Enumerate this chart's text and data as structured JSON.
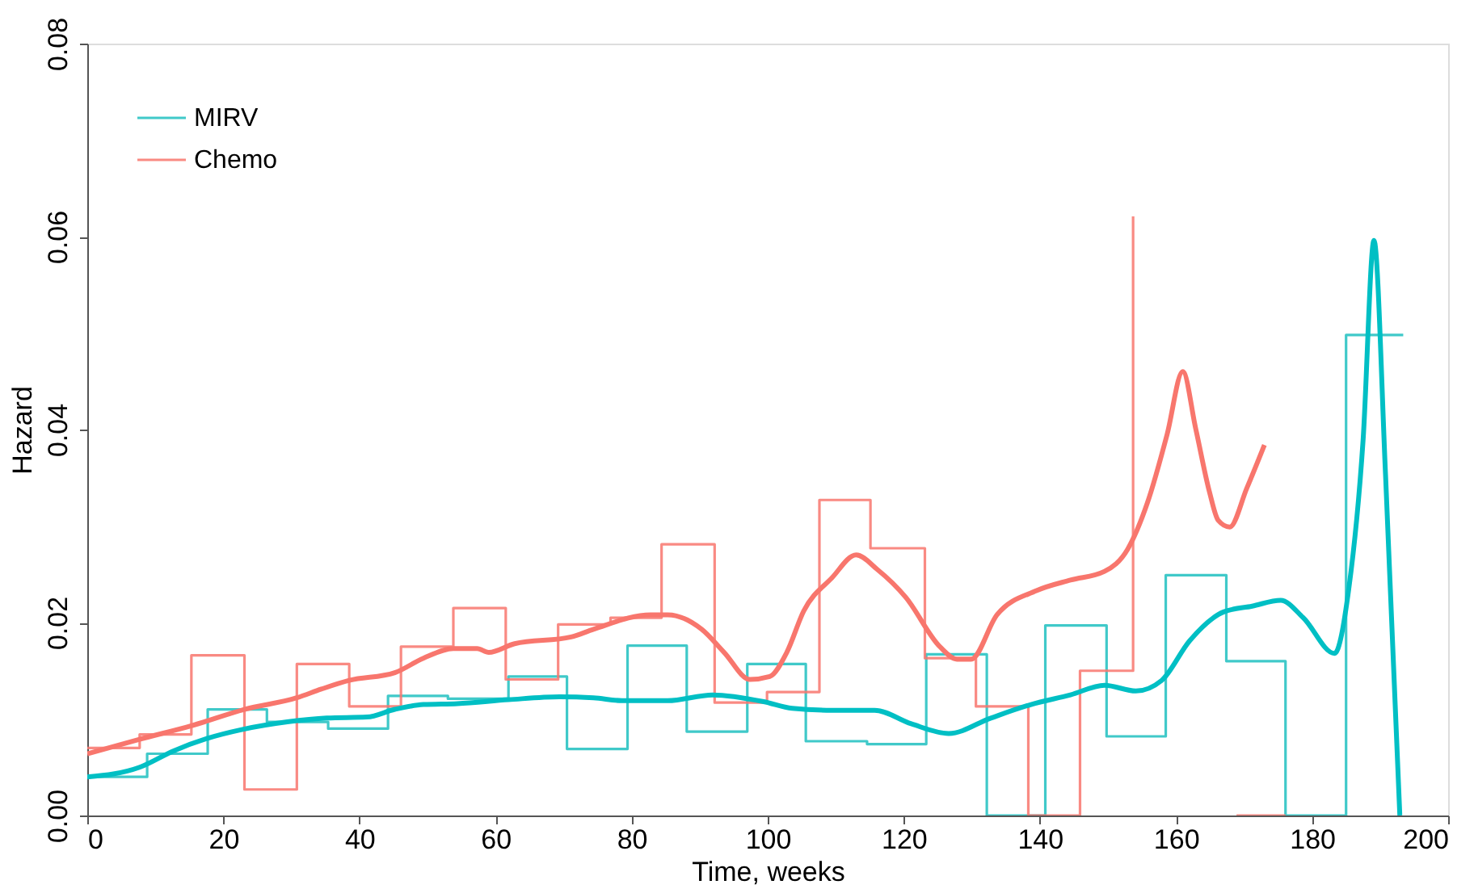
{
  "chart_data": {
    "type": "line",
    "xlabel": "Time, weeks",
    "ylabel": "Hazard",
    "xlim": [
      0,
      200
    ],
    "xticks": [
      0,
      20,
      40,
      60,
      80,
      100,
      120,
      140,
      160,
      180,
      200
    ],
    "ylim": [
      0,
      0.08
    ],
    "yticks": [
      {
        "value": 0,
        "label": "0.00"
      },
      0.02,
      0.04,
      0.06,
      0.08
    ],
    "grid": false,
    "legend": "top left",
    "series": [
      {
        "name": "MIRV",
        "color": "#1fc0c0",
        "type": "step",
        "x": [
          0,
          8.8,
          17.7,
          26.4,
          35.4,
          44.2,
          53.0,
          61.9,
          70.5,
          79.4,
          88.1,
          97.0,
          105.6,
          114.6,
          123.3,
          132.2,
          140.8,
          149.8,
          158.5,
          167.4,
          176.1,
          185.0,
          193.4
        ],
        "values": [
          0.004,
          0.0064,
          0.011,
          0.0097,
          0.009,
          0.0124,
          0.0121,
          0.0144,
          0.0069,
          0.0176,
          0.0087,
          0.0157,
          0.0077,
          0.0074,
          0.0167,
          0,
          0.0197,
          0.0082,
          0.0249,
          0.016,
          0,
          0.0498,
          0.0498
        ]
      },
      {
        "name": "Chemo",
        "color": "#f8766d",
        "type": "step",
        "x": [
          0,
          7.7,
          15.3,
          23.1,
          30.8,
          38.5,
          46.1,
          53.8,
          61.5,
          69.2,
          76.9,
          84.4,
          92.2,
          99.9,
          107.6,
          115.1,
          123.1,
          130.6,
          138.3,
          145.9,
          153.7,
          161.3,
          168.9,
          176.1
        ],
        "values": [
          0.007,
          0.0084,
          0.0166,
          0.0027,
          0.0157,
          0.0113,
          0.0175,
          0.0215,
          0.0141,
          0.0198,
          0.0205,
          0.0281,
          0.0117,
          0.0128,
          0.0327,
          0.0277,
          0.0163,
          0.0113,
          0,
          0.015,
          0.0621,
          null,
          0,
          0
        ]
      },
      {
        "color": "#00bfc4",
        "type": "line",
        "x": [
          0,
          7.7,
          12.7,
          17.7,
          22.7,
          29.4,
          35.2,
          41.1,
          45.2,
          49.4,
          54.4,
          61.9,
          69.4,
          74.4,
          78.6,
          85.3,
          91.9,
          99.4,
          103.6,
          109.4,
          115.7,
          121.1,
          126.6,
          132.8,
          138.7,
          144.5,
          149.5,
          154.1,
          157.9,
          162.0,
          167.0,
          171.2,
          175.4,
          178.7,
          183.3,
          185.4,
          187.5,
          189.1,
          190.8,
          192.9
        ],
        "values": [
          0.004,
          0.005,
          0.0067,
          0.008,
          0.0089,
          0.0097,
          0.0101,
          0.0102,
          0.011,
          0.0115,
          0.0116,
          0.012,
          0.0123,
          0.0122,
          0.0119,
          0.0119,
          0.0125,
          0.0118,
          0.0111,
          0.0109,
          0.0109,
          0.0095,
          0.0085,
          0.0101,
          0.0115,
          0.0125,
          0.0135,
          0.0129,
          0.014,
          0.0181,
          0.0211,
          0.0217,
          0.0223,
          0.0205,
          0.0168,
          0.0235,
          0.0389,
          0.0596,
          0.0353,
          0
        ]
      },
      {
        "color": "#f8766d",
        "type": "line",
        "x": [
          0,
          7.7,
          15.3,
          23.1,
          30.8,
          34.4,
          38.5,
          45.2,
          49.4,
          53.8,
          57.3,
          59.0,
          62.8,
          71.1,
          74.4,
          82.8,
          85.3,
          90.3,
          93.6,
          97.4,
          100.3,
          102.8,
          105.3,
          109.4,
          113.0,
          116.1,
          120.3,
          125.3,
          127.8,
          129.9,
          133.7,
          139.5,
          144.5,
          149.5,
          152.9,
          155.8,
          158.7,
          161.0,
          162.9,
          164.9,
          166.2,
          167.9,
          170.4,
          173.0
        ],
        "values": [
          0.0064,
          0.0079,
          0.0093,
          0.011,
          0.0122,
          0.0131,
          0.014,
          0.0148,
          0.0163,
          0.0173,
          0.0173,
          0.0169,
          0.0178,
          0.0185,
          0.0193,
          0.0208,
          0.0208,
          0.0193,
          0.0169,
          0.0141,
          0.0144,
          0.0169,
          0.0212,
          0.0246,
          0.027,
          0.0255,
          0.0226,
          0.0175,
          0.0162,
          0.0162,
          0.0208,
          0.0233,
          0.0244,
          0.0253,
          0.0276,
          0.0324,
          0.0395,
          0.046,
          0.0401,
          0.0336,
          0.0306,
          0.0299,
          0.0339,
          0.0384
        ]
      }
    ]
  }
}
